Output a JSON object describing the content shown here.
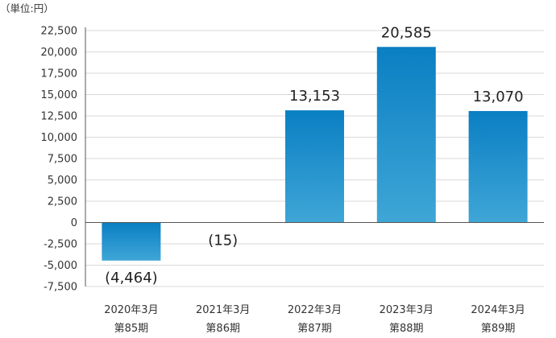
{
  "unit_label": "（単位:円）",
  "chart_data": {
    "type": "bar",
    "categories": [
      [
        "2020年3月",
        "第85期"
      ],
      [
        "2021年3月",
        "第86期"
      ],
      [
        "2022年3月",
        "第87期"
      ],
      [
        "2023年3月",
        "第88期"
      ],
      [
        "2024年3月",
        "第89期"
      ]
    ],
    "values": [
      -4464,
      -15,
      13153,
      20585,
      13070
    ],
    "data_labels": [
      "(4,464)",
      "(15)",
      "13,153",
      "20,585",
      "13,070"
    ],
    "ylim": [
      -7500,
      22500
    ],
    "yticks": [
      22500,
      20000,
      17500,
      15000,
      12500,
      10000,
      7500,
      5000,
      2500,
      0,
      -2500,
      -5000,
      -7500
    ],
    "ytick_labels": [
      "22,500",
      "20,000",
      "17,500",
      "15,000",
      "12,500",
      "10,000",
      "7,500",
      "5,000",
      "2,500",
      "0",
      "-2,500",
      "-5,000",
      "-7,500"
    ],
    "grid": true,
    "colors": {
      "bar_top": "#0A7FC3",
      "bar_bottom": "#3FA6D6",
      "grid": "#D9D9D9",
      "axis": "#555555"
    }
  }
}
